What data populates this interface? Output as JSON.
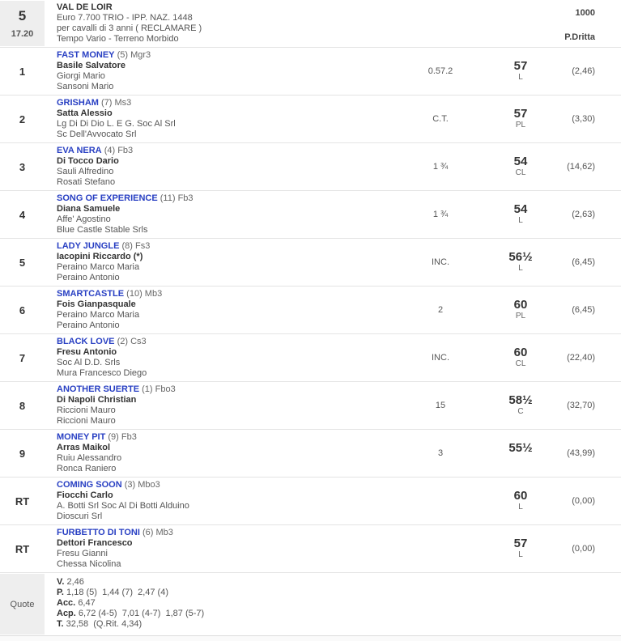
{
  "header": {
    "race_number": "5",
    "race_time": "17.20",
    "title": "VAL DE LOIR",
    "line2": "Euro 7.700 TRIO - IPP. NAZ. 1448",
    "line3": "per cavalli di 3 anni ( RECLAMARE )",
    "line4": "Tempo Vario - Terreno Morbido",
    "distance": "1000",
    "track": "P.Dritta"
  },
  "rows": [
    {
      "pos": "1",
      "horse": "FAST MONEY",
      "info": "(5) Mgr3",
      "driver": "Basile Salvatore",
      "line3": "Giorgi Mario",
      "line4": "Sansoni Mario",
      "dist": "0.57.2",
      "weight": "57",
      "weight_note": "L",
      "odds": "(2,46)"
    },
    {
      "pos": "2",
      "horse": "GRISHAM",
      "info": "(7) Ms3",
      "driver": "Satta Alessio",
      "line3": "Lg Di Di Dio L. E G. Soc Al Srl",
      "line4": "Sc Dell'Avvocato Srl",
      "dist": "C.T.",
      "weight": "57",
      "weight_note": "PL",
      "odds": "(3,30)"
    },
    {
      "pos": "3",
      "horse": "EVA NERA",
      "info": "(4) Fb3",
      "driver": "Di Tocco Dario",
      "line3": "Sauli Alfredino",
      "line4": "Rosati Stefano",
      "dist": "1 ¾",
      "weight": "54",
      "weight_note": "CL",
      "odds": "(14,62)"
    },
    {
      "pos": "4",
      "horse": "SONG OF EXPERIENCE",
      "info": "(11) Fb3",
      "driver": "Diana Samuele",
      "line3": "Affe' Agostino",
      "line4": "Blue Castle Stable Srls",
      "dist": "1 ¾",
      "weight": "54",
      "weight_note": "L",
      "odds": "(2,63)"
    },
    {
      "pos": "5",
      "horse": "LADY JUNGLE",
      "info": "(8) Fs3",
      "driver": "Iacopini Riccardo (*)",
      "line3": "Peraino Marco Maria",
      "line4": "Peraino Antonio",
      "dist": "INC.",
      "weight": "56½",
      "weight_note": "L",
      "odds": "(6,45)"
    },
    {
      "pos": "6",
      "horse": "SMARTCASTLE",
      "info": "(10) Mb3",
      "driver": "Fois Gianpasquale",
      "line3": "Peraino Marco Maria",
      "line4": "Peraino Antonio",
      "dist": "2",
      "weight": "60",
      "weight_note": "PL",
      "odds": "(6,45)"
    },
    {
      "pos": "7",
      "horse": "BLACK LOVE",
      "info": "(2) Cs3",
      "driver": "Fresu Antonio",
      "line3": "Soc Al D.D. Srls",
      "line4": "Mura Francesco Diego",
      "dist": "INC.",
      "weight": "60",
      "weight_note": "CL",
      "odds": "(22,40)"
    },
    {
      "pos": "8",
      "horse": "ANOTHER SUERTE",
      "info": "(1) Fbo3",
      "driver": "Di Napoli Christian",
      "line3": "Riccioni Mauro",
      "line4": "Riccioni Mauro",
      "dist": "15",
      "weight": "58½",
      "weight_note": "C",
      "odds": "(32,70)"
    },
    {
      "pos": "9",
      "horse": "MONEY PIT",
      "info": "(9) Fb3",
      "driver": "Arras Maikol",
      "line3": "Ruiu Alessandro",
      "line4": "Ronca Raniero",
      "dist": "3",
      "weight": "55½",
      "weight_note": "",
      "odds": "(43,99)"
    },
    {
      "pos": "RT",
      "horse": "COMING SOON",
      "info": "(3) Mbo3",
      "driver": "Fiocchi Carlo",
      "line3": "A. Botti Srl Soc Al Di Botti Alduino",
      "line4": "Dioscuri Srl",
      "dist": "",
      "weight": "60",
      "weight_note": "L",
      "odds": "(0,00)"
    },
    {
      "pos": "RT",
      "horse": "FURBETTO DI TONI",
      "info": "(6) Mb3",
      "driver": "Dettori Francesco",
      "line3": "Fresu Gianni",
      "line4": "Chessa Nicolina",
      "dist": "",
      "weight": "57",
      "weight_note": "L",
      "odds": "(0,00)"
    }
  ],
  "quote": {
    "label": "Quote",
    "lines": [
      {
        "label": "V.",
        "value": "2,46"
      },
      {
        "label": "P.",
        "value": "1,18 (5)  1,44 (7)  2,47 (4)"
      },
      {
        "label": "Acc.",
        "value": "6,47"
      },
      {
        "label": "Acp.",
        "value": "6,72 (4-5)  7,01 (4-7)  1,87 (5-7)"
      },
      {
        "label": "T.",
        "value": "32,58  (Q.Rit. 4,34)"
      }
    ]
  },
  "colors": {
    "horse_link": "#2940c3",
    "header_cell_bg": "#eeeeee",
    "row_border": "#e4e4e4"
  }
}
